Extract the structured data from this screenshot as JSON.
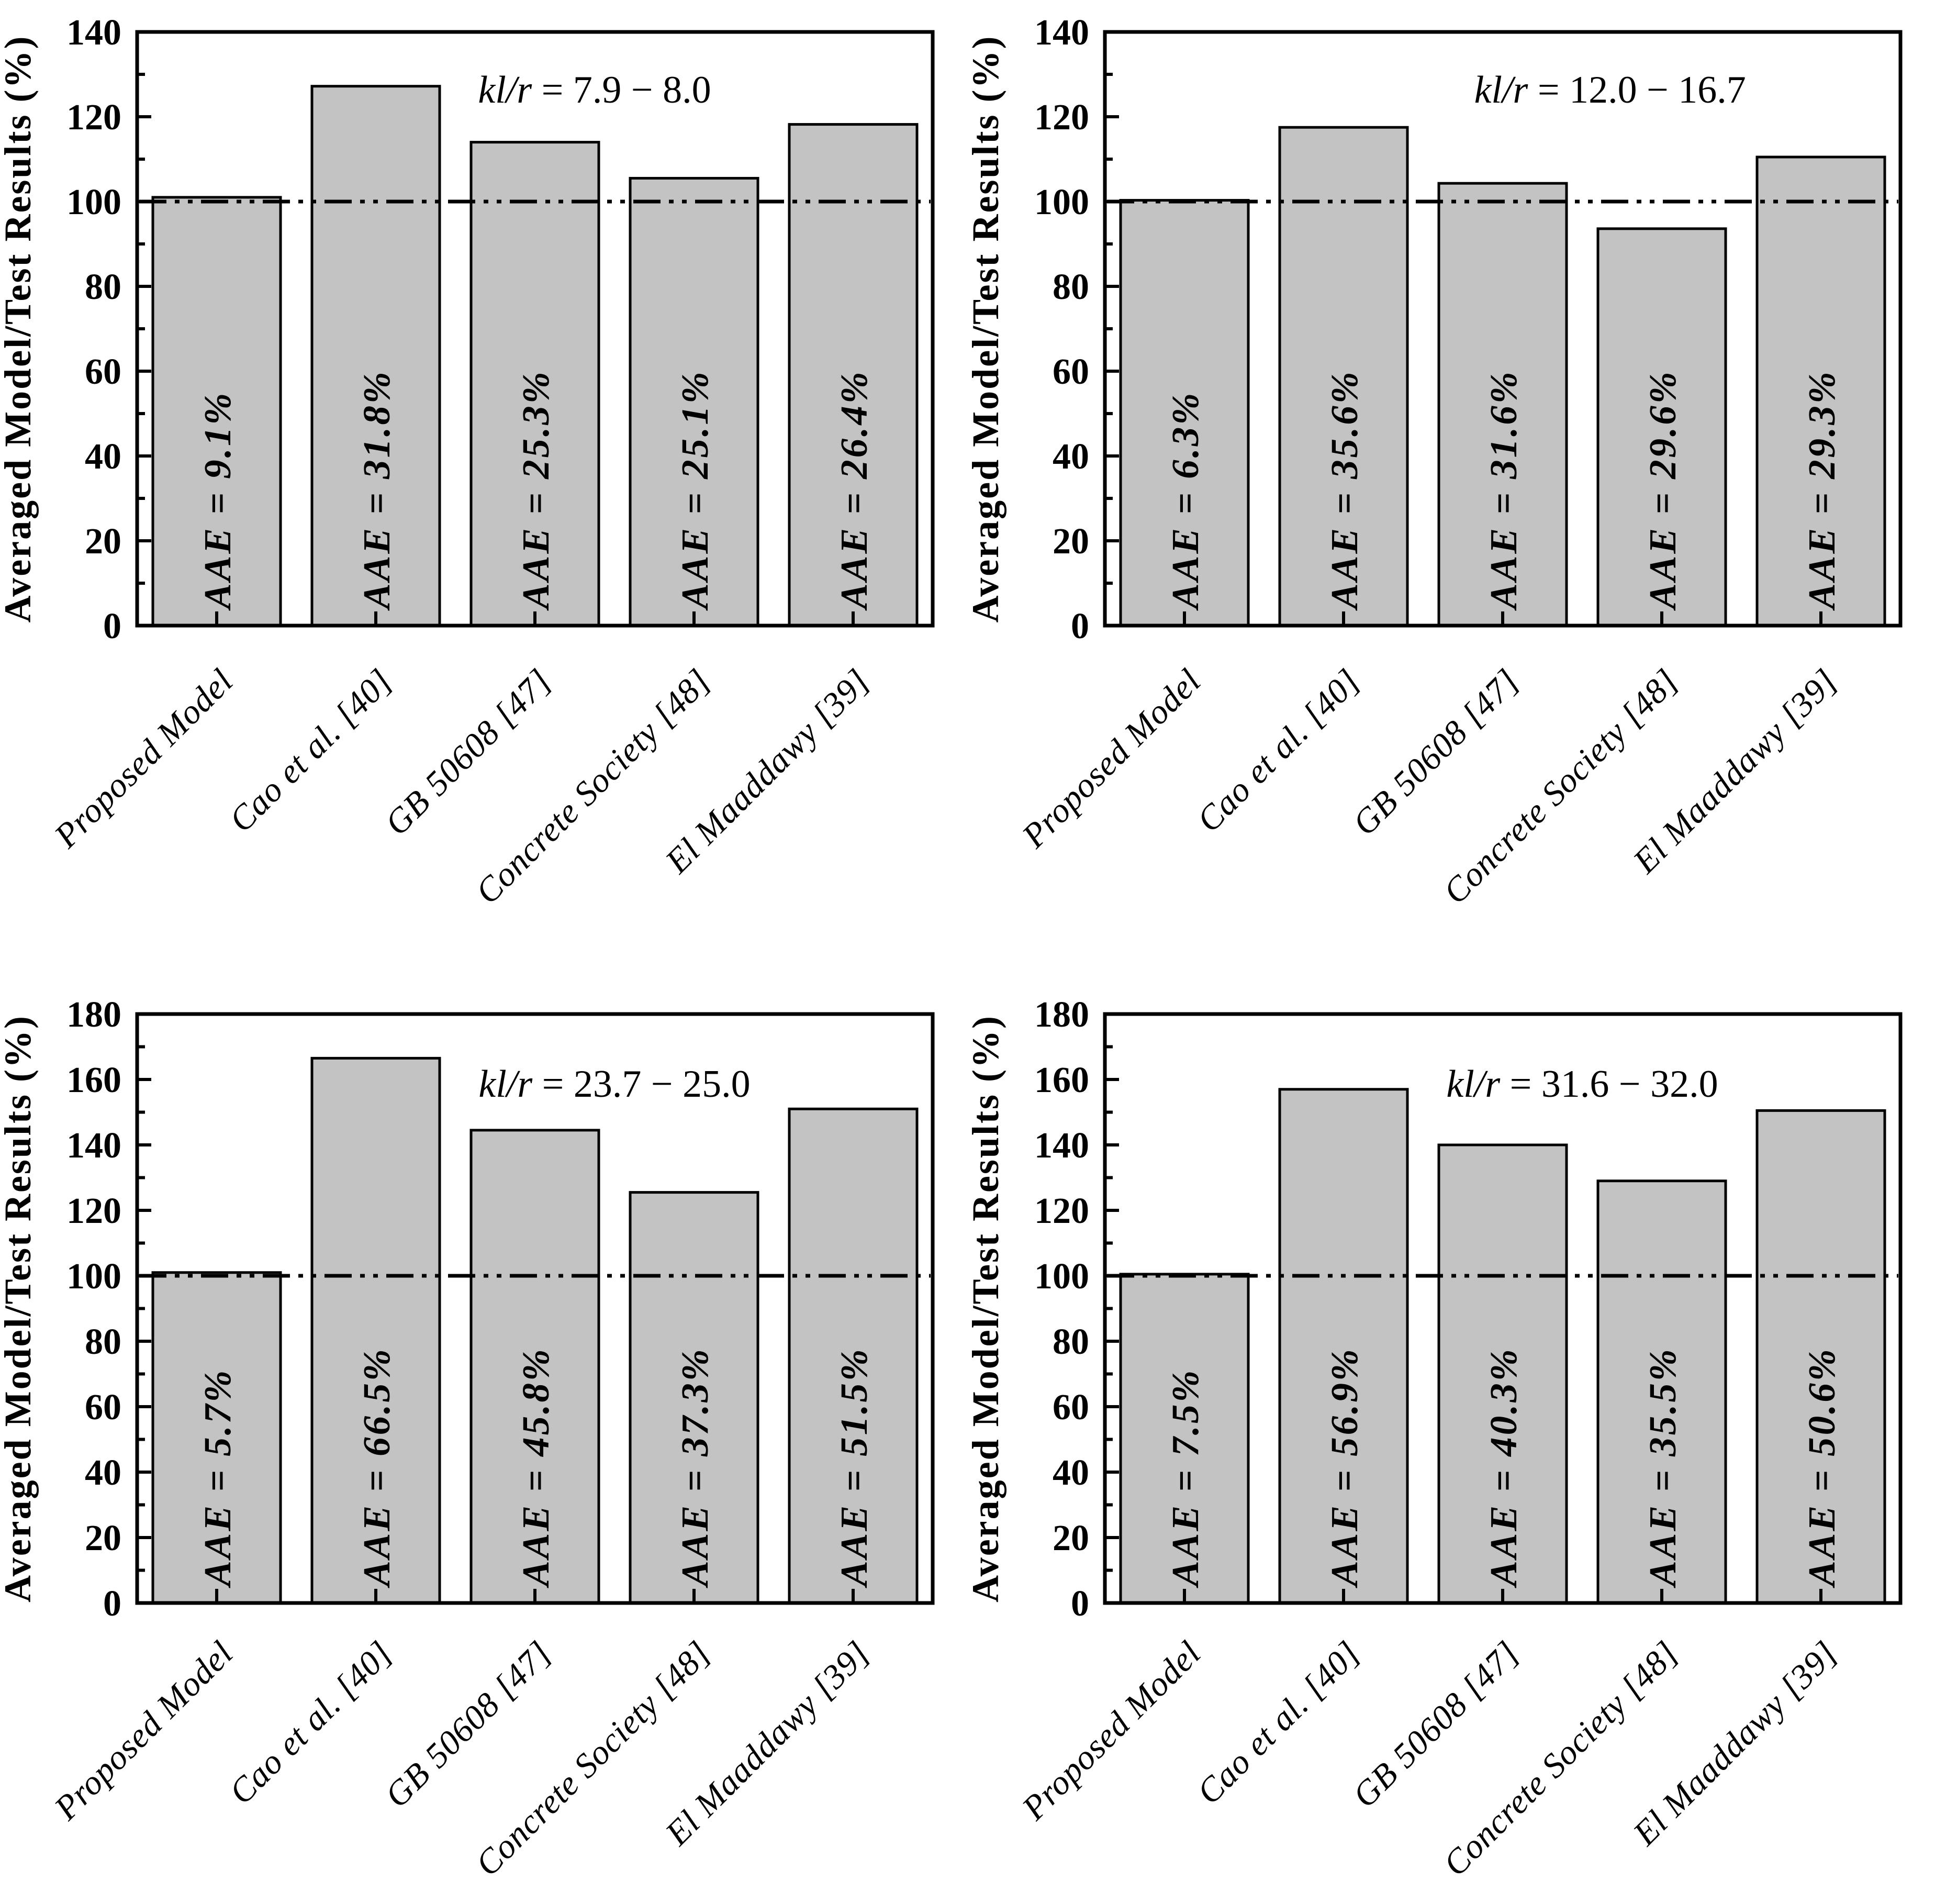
{
  "figure": {
    "background": "#ffffff",
    "axis_color": "#000000",
    "bar_fill": "#c3c3c3",
    "ylabel": "Averaged Model/Test Results (%)",
    "categories": [
      "Proposed Model",
      "Cao et al. [40]",
      "GB 50608 [47]",
      "Concrete Society [48]",
      "El Maaddawy [39]"
    ]
  },
  "chart_data": [
    {
      "type": "bar",
      "title": "kl/r = 7.9 − 8.0",
      "title_var": "kl/r",
      "title_range": "7.9 − 8.0",
      "ylabel": "Averaged Model/Test Results (%)",
      "categories": [
        "Proposed Model",
        "Cao et al. [40]",
        "GB 50608 [47]",
        "Concrete Society [48]",
        "El Maaddawy [39]"
      ],
      "values": [
        101,
        127.2,
        114,
        105.5,
        118.2
      ],
      "bar_labels": [
        "AAE = 9.1%",
        "AAE = 31.8%",
        "AAE = 25.3%",
        "AAE = 25.1%",
        "AAE = 26.4%"
      ],
      "aae_values": [
        "9.1%",
        "31.8%",
        "25.3%",
        "25.1%",
        "26.4%"
      ],
      "ylim": [
        0,
        140
      ],
      "ytick_step": 20,
      "yticks": [
        0,
        20,
        40,
        60,
        80,
        100,
        120,
        140
      ],
      "reference_line": 100,
      "grid": false,
      "legend": "none"
    },
    {
      "type": "bar",
      "title": "kl/r = 12.0 − 16.7",
      "title_var": "kl/r",
      "title_range": "12.0 − 16.7",
      "ylabel": "Averaged Model/Test Results (%)",
      "categories": [
        "Proposed Model",
        "Cao et al. [40]",
        "GB 50608 [47]",
        "Concrete Society [48]",
        "El Maaddawy [39]"
      ],
      "values": [
        100.3,
        117.5,
        104.3,
        93.6,
        110.5
      ],
      "bar_labels": [
        "AAE = 6.3%",
        "AAE = 35.6%",
        "AAE = 31.6%",
        "AAE = 29.6%",
        "AAE = 29.3%"
      ],
      "aae_values": [
        "6.3%",
        "35.6%",
        "31.6%",
        "29.6%",
        "29.3%"
      ],
      "ylim": [
        0,
        140
      ],
      "ytick_step": 20,
      "yticks": [
        0,
        20,
        40,
        60,
        80,
        100,
        120,
        140
      ],
      "reference_line": 100,
      "grid": false,
      "legend": "none"
    },
    {
      "type": "bar",
      "title": "kl/r = 23.7 − 25.0",
      "title_var": "kl/r",
      "title_range": "23.7 − 25.0",
      "ylabel": "Averaged Model/Test Results (%)",
      "categories": [
        "Proposed Model",
        "Cao et al. [40]",
        "GB 50608 [47]",
        "Concrete Society [48]",
        "El Maaddawy [39]"
      ],
      "values": [
        101,
        166.5,
        144.5,
        125.5,
        151
      ],
      "bar_labels": [
        "AAE = 5.7%",
        "AAE = 66.5%",
        "AAE = 45.8%",
        "AAE = 37.3%",
        "AAE = 51.5%"
      ],
      "aae_values": [
        "5.7%",
        "66.5%",
        "45.8%",
        "37.3%",
        "51.5%"
      ],
      "ylim": [
        0,
        180
      ],
      "ytick_step": 20,
      "yticks": [
        0,
        20,
        40,
        60,
        80,
        100,
        120,
        140,
        160,
        180
      ],
      "reference_line": 100,
      "grid": false,
      "legend": "none"
    },
    {
      "type": "bar",
      "title": "kl/r = 31.6 − 32.0",
      "title_var": "kl/r",
      "title_range": "31.6 − 32.0",
      "ylabel": "Averaged Model/Test Results (%)",
      "categories": [
        "Proposed Model",
        "Cao et al. [40]",
        "GB 50608 [47]",
        "Concrete Society [48]",
        "El Maaddawy [39]"
      ],
      "values": [
        100.5,
        157,
        140,
        129,
        150.5
      ],
      "bar_labels": [
        "AAE = 7.5%",
        "AAE = 56.9%",
        "AAE = 40.3%",
        "AAE = 35.5%",
        "AAE = 50.6%"
      ],
      "aae_values": [
        "7.5%",
        "56.9%",
        "40.3%",
        "35.5%",
        "50.6%"
      ],
      "ylim": [
        0,
        180
      ],
      "ytick_step": 20,
      "yticks": [
        0,
        20,
        40,
        60,
        80,
        100,
        120,
        140,
        160,
        180
      ],
      "reference_line": 100,
      "grid": false,
      "legend": "none"
    }
  ]
}
